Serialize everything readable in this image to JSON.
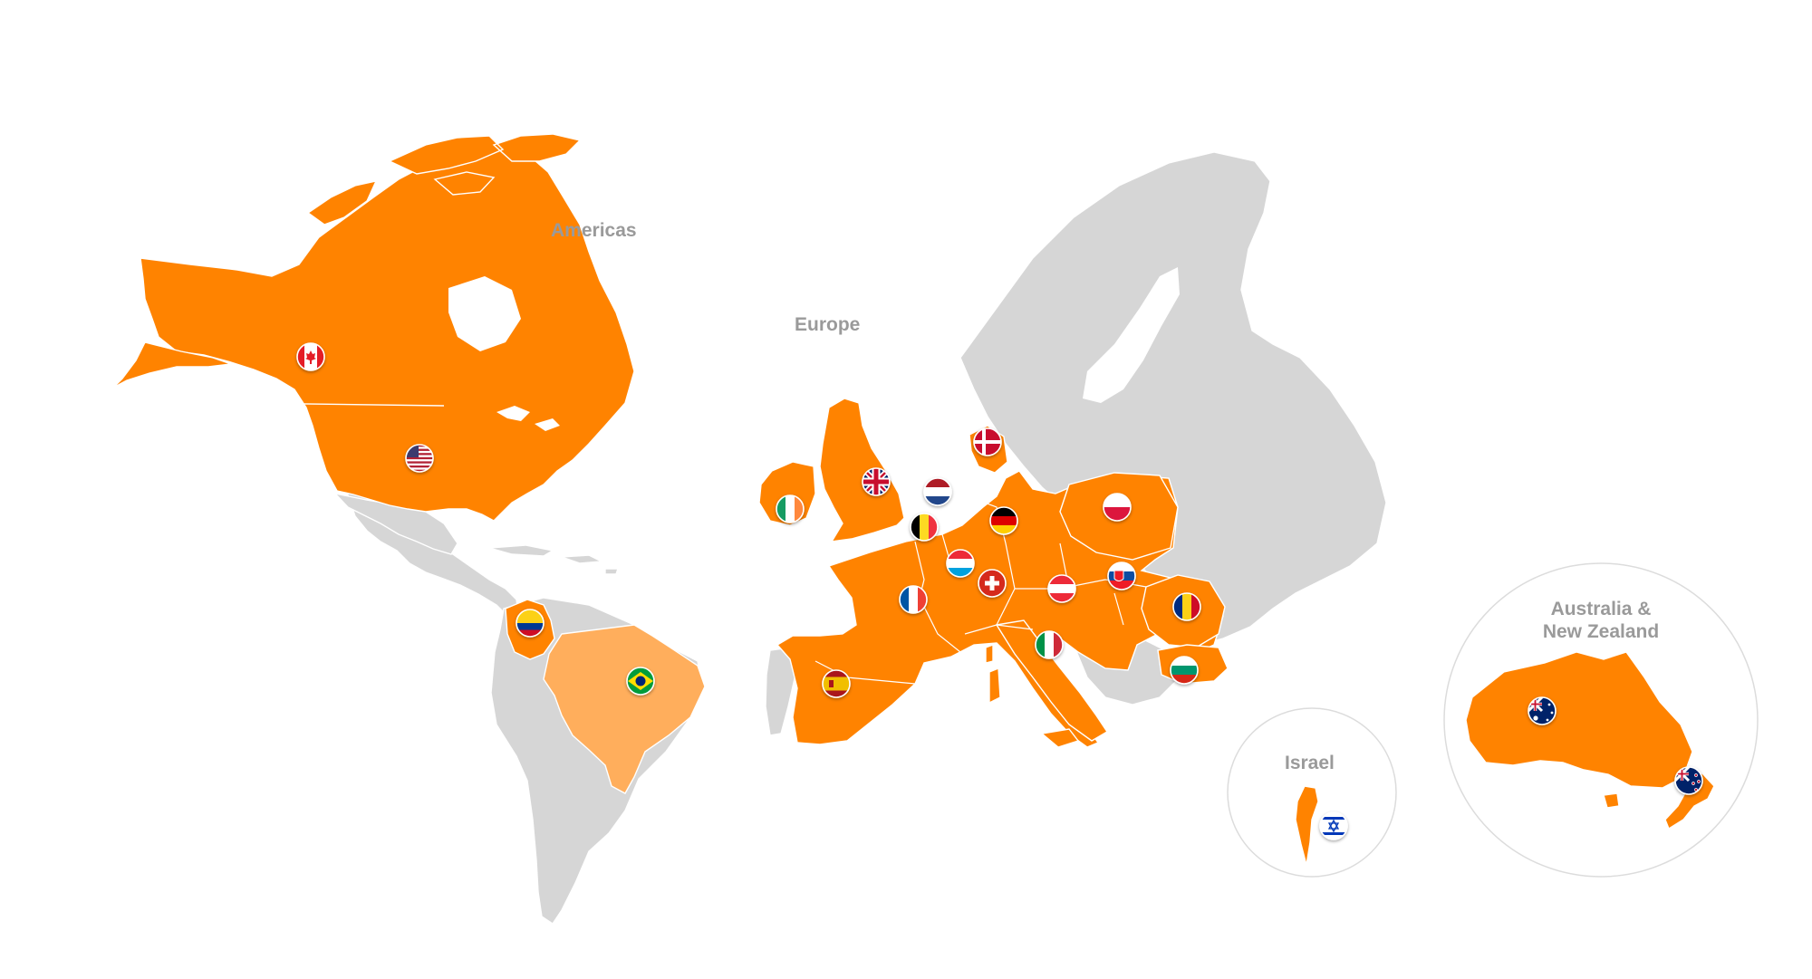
{
  "labels": {
    "americas": "Americas",
    "europe": "Europe",
    "israel": "Israel",
    "australia_nz_line1": "Australia &",
    "australia_nz_line2": "New Zealand"
  },
  "colors": {
    "covered": "#ff8300",
    "partial": "#ffae5c",
    "uncovered": "#d6d6d6",
    "label": "#9a9a9a",
    "background": "#ffffff"
  },
  "flags": [
    {
      "name": "canada-flag",
      "country": "Canada",
      "icon": "flag-canada"
    },
    {
      "name": "usa-flag",
      "country": "United States",
      "icon": "flag-usa"
    },
    {
      "name": "colombia-flag",
      "country": "Colombia",
      "icon": "flag-colombia"
    },
    {
      "name": "brazil-flag",
      "country": "Brazil",
      "icon": "flag-brazil"
    },
    {
      "name": "ireland-flag",
      "country": "Ireland",
      "icon": "flag-ireland"
    },
    {
      "name": "uk-flag",
      "country": "United Kingdom",
      "icon": "flag-uk"
    },
    {
      "name": "netherlands-flag",
      "country": "Netherlands",
      "icon": "flag-netherlands"
    },
    {
      "name": "belgium-flag",
      "country": "Belgium",
      "icon": "flag-belgium"
    },
    {
      "name": "luxembourg-flag",
      "country": "Luxembourg",
      "icon": "flag-luxembourg"
    },
    {
      "name": "denmark-flag",
      "country": "Denmark",
      "icon": "flag-denmark"
    },
    {
      "name": "germany-flag",
      "country": "Germany",
      "icon": "flag-germany"
    },
    {
      "name": "poland-flag",
      "country": "Poland",
      "icon": "flag-poland"
    },
    {
      "name": "france-flag",
      "country": "France",
      "icon": "flag-france"
    },
    {
      "name": "switzerland-flag",
      "country": "Switzerland",
      "icon": "flag-switzerland"
    },
    {
      "name": "austria-flag",
      "country": "Austria",
      "icon": "flag-austria"
    },
    {
      "name": "slovakia-flag",
      "country": "Slovakia",
      "icon": "flag-slovakia"
    },
    {
      "name": "romania-flag",
      "country": "Romania",
      "icon": "flag-romania"
    },
    {
      "name": "bulgaria-flag",
      "country": "Bulgaria",
      "icon": "flag-bulgaria"
    },
    {
      "name": "italy-flag",
      "country": "Italy",
      "icon": "flag-italy"
    },
    {
      "name": "spain-flag",
      "country": "Spain",
      "icon": "flag-spain"
    },
    {
      "name": "israel-flag",
      "country": "Israel",
      "icon": "flag-israel"
    },
    {
      "name": "australia-flag",
      "country": "Australia",
      "icon": "flag-australia"
    },
    {
      "name": "new-zealand-flag",
      "country": "New Zealand",
      "icon": "flag-new-zealand"
    }
  ]
}
